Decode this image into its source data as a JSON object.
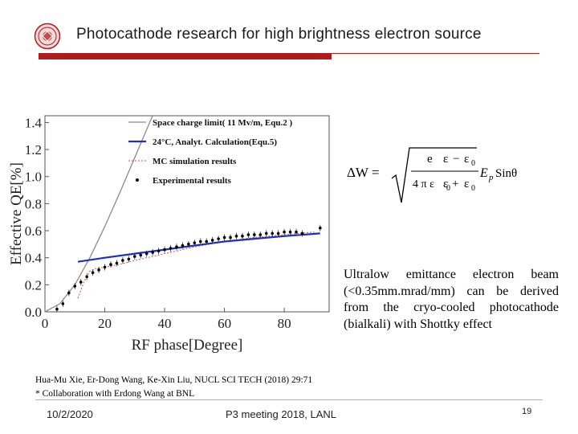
{
  "slide": {
    "title": "Photocathode research for high brightness electron source",
    "accent_color": "#b01c1c",
    "logo_icon": "university-seal-icon"
  },
  "chart_data": {
    "type": "line",
    "xlabel": "RF phase[Degree]",
    "ylabel": "Effective QE[%]",
    "xlim": [
      0,
      95
    ],
    "ylim": [
      0,
      1.45
    ],
    "xticks": [
      0,
      20,
      40,
      60,
      80
    ],
    "yticks": [
      0.0,
      0.2,
      0.4,
      0.6,
      0.8,
      1.0,
      1.2,
      1.4
    ],
    "legend": [
      "Space charge limit( 11 Mv/m, Equ.2 )",
      "24°C, Analyt. Calculation(Equ.5)",
      "MC simulation results",
      "Experimental results"
    ],
    "series": [
      {
        "name": "Space charge limit( 11 Mv/m, Equ.2 )",
        "color": "#8a8a8a",
        "x": [
          0,
          5,
          10,
          15,
          20,
          25,
          30,
          35,
          36
        ],
        "y": [
          0.0,
          0.06,
          0.2,
          0.4,
          0.63,
          0.88,
          1.14,
          1.4,
          1.45
        ]
      },
      {
        "name": "24°C, Analyt. Calculation(Equ.5)",
        "color": "#1f2fbf",
        "x": [
          11,
          20,
          30,
          40,
          50,
          60,
          70,
          80,
          92
        ],
        "y": [
          0.37,
          0.4,
          0.43,
          0.46,
          0.49,
          0.52,
          0.54,
          0.56,
          0.58
        ]
      },
      {
        "name": "MC simulation results",
        "color": "#c0504d",
        "x": [
          11,
          13,
          15,
          17,
          20,
          25,
          30,
          40,
          50,
          60,
          70,
          80,
          90
        ],
        "y": [
          0.1,
          0.22,
          0.3,
          0.32,
          0.33,
          0.35,
          0.38,
          0.43,
          0.48,
          0.52,
          0.55,
          0.57,
          0.59
        ]
      },
      {
        "name": "Experimental results",
        "color": "#000000",
        "x": [
          4,
          6,
          8,
          10,
          12,
          14,
          16,
          18,
          20,
          22,
          24,
          26,
          28,
          30,
          32,
          34,
          36,
          38,
          40,
          42,
          44,
          46,
          48,
          50,
          52,
          54,
          56,
          58,
          60,
          62,
          64,
          66,
          68,
          70,
          72,
          74,
          76,
          78,
          80,
          82,
          84,
          86,
          92
        ],
        "y": [
          0.02,
          0.06,
          0.14,
          0.19,
          0.22,
          0.26,
          0.29,
          0.31,
          0.33,
          0.35,
          0.36,
          0.38,
          0.39,
          0.41,
          0.42,
          0.43,
          0.44,
          0.45,
          0.46,
          0.47,
          0.48,
          0.49,
          0.5,
          0.51,
          0.52,
          0.52,
          0.53,
          0.54,
          0.55,
          0.55,
          0.56,
          0.56,
          0.57,
          0.57,
          0.57,
          0.58,
          0.58,
          0.58,
          0.59,
          0.59,
          0.59,
          0.58,
          0.62
        ]
      }
    ]
  },
  "formula": {
    "lhs": "ΔW =",
    "num_top": "e",
    "den_top": "4 π ε",
    "sub0": "0",
    "eps": "ε",
    "minus": "−",
    "plus": "+",
    "tail": "E",
    "tail_sub": "p",
    "tail_end": "Sinθ"
  },
  "description": "Ultralow emittance electron beam (<0.35mm.mrad/mm) can be derived from the cryo-cooled photocathode (bialkali) with Shottky effect",
  "citation": {
    "line1": "Hua-Mu Xie, Er-Dong Wang, Ke-Xin Liu, NUCL SCI TECH (2018) 29:71",
    "line2": "* Collaboration with Erdong Wang at BNL"
  },
  "footer": {
    "date": "10/2/2020",
    "conference": "P3 meeting 2018, LANL",
    "page": "19"
  }
}
